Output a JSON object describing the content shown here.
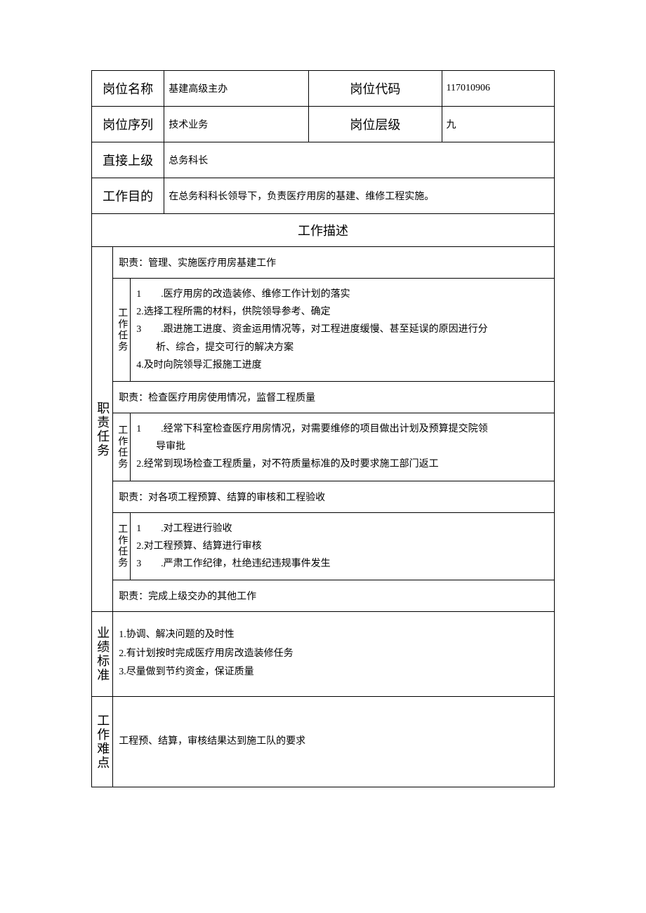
{
  "header": {
    "position_name_label": "岗位名称",
    "position_name_value": "基建高级主办",
    "position_code_label": "岗位代码",
    "position_code_value": "117010906",
    "position_series_label": "岗位序列",
    "position_series_value": "技术业务",
    "position_level_label": "岗位层级",
    "position_level_value": "九",
    "supervisor_label": "直接上级",
    "supervisor_value": "总务科长",
    "objective_label": "工作目的",
    "objective_value": "在总务科科长领导下，负责医疗用房的基建、维修工程实施。"
  },
  "description_header": "工作描述",
  "duties_label": "职责任务",
  "task_label": "工作任务",
  "duties": [
    {
      "title": "职责：管理、实施医疗用房基建工作",
      "tasks": "1　　.医疗用房的改造装修、维修工作计划的落实\n2.选择工程所需的材料，供院领导参考、确定\n3　　.跟进施工进度、资金运用情况等，对工程进度缓慢、甚至延误的原因进行分\n　　析、综合，提交可行的解决方案\n4.及时向院领导汇报施工进度"
    },
    {
      "title": "职责：检查医疗用房使用情况，监督工程质量",
      "tasks": "1　　.经常下科室检查医疗用房情况，对需要维修的项目做出计划及预算提交院领\n　　导审批\n2.经常到现场检查工程质量，对不符质量标准的及时要求施工部门返工"
    },
    {
      "title": "职责：对各项工程预算、结算的审核和工程验收",
      "tasks": "1　　.对工程进行验收\n2.对工程预算、结算进行审核\n3　　.严肃工作纪律，杜绝违纪违规事件发生"
    },
    {
      "title": "职责：完成上级交办的其他工作"
    }
  ],
  "standards": {
    "label": "业绩标准",
    "content": "1.协调、解决问题的及时性\n2.有计划按时完成医疗用房改造装修任务\n3.尽量做到节约资金，保证质量"
  },
  "difficulty": {
    "label": "工作难点",
    "content": "工程预、结算，审核结果达到施工队的要求"
  }
}
